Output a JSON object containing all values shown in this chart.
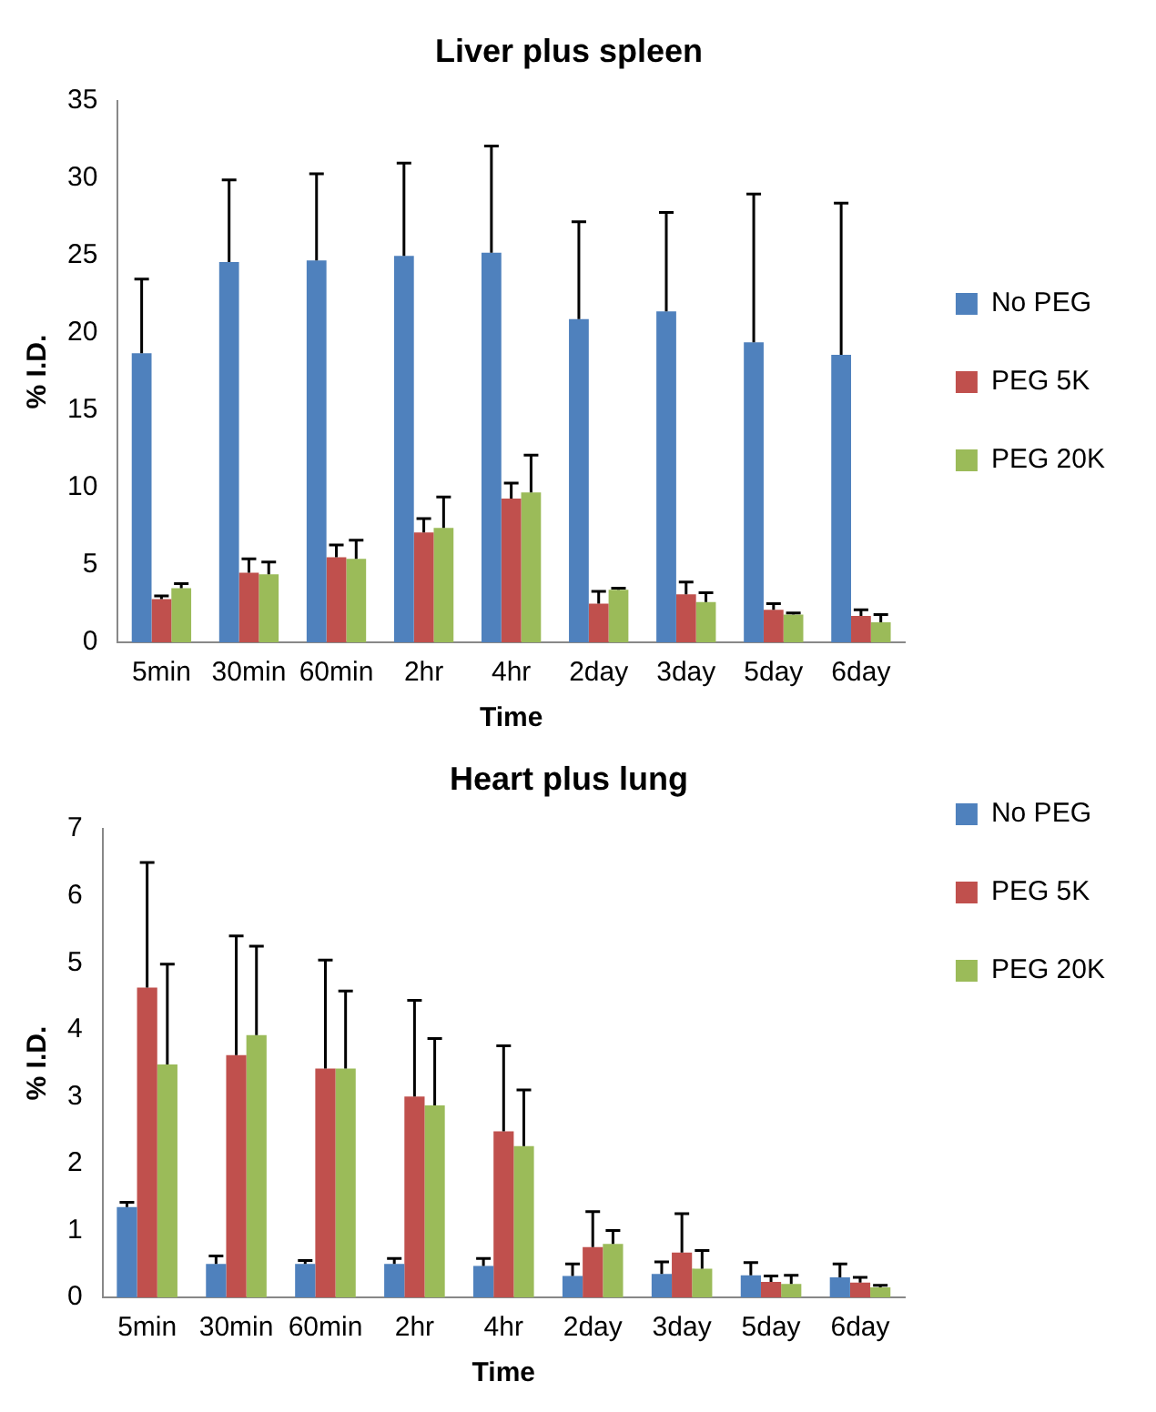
{
  "chart_data": [
    {
      "type": "bar",
      "title": "Liver plus spleen",
      "xlabel": "Time",
      "ylabel": "% I.D.",
      "categories": [
        "5min",
        "30min",
        "60min",
        "2hr",
        "4hr",
        "2day",
        "3day",
        "5day",
        "6day"
      ],
      "ylim": [
        0,
        35
      ],
      "yticks": [
        0,
        5,
        10,
        15,
        20,
        25,
        30,
        35
      ],
      "grid": false,
      "legend": "right",
      "series": [
        {
          "name": "No PEG",
          "color": "#4f81bd",
          "values": [
            18.7,
            24.6,
            24.7,
            25.0,
            25.2,
            20.9,
            21.4,
            19.4,
            18.6
          ],
          "errors": [
            [
              18.7,
              23.5
            ],
            [
              24.6,
              29.9
            ],
            [
              24.7,
              30.3
            ],
            [
              25.0,
              31.0
            ],
            [
              25.2,
              32.1
            ],
            [
              20.9,
              27.2
            ],
            [
              21.4,
              27.8
            ],
            [
              19.4,
              29.0
            ],
            [
              18.6,
              28.4
            ]
          ]
        },
        {
          "name": "PEG 5K",
          "color": "#c0504d",
          "values": [
            2.8,
            4.5,
            5.5,
            7.1,
            9.3,
            2.5,
            3.1,
            2.1,
            1.7
          ],
          "errors": [
            [
              2.8,
              3.0
            ],
            [
              4.5,
              5.4
            ],
            [
              5.5,
              6.3
            ],
            [
              7.1,
              8.0
            ],
            [
              9.3,
              10.3
            ],
            [
              2.5,
              3.3
            ],
            [
              3.1,
              3.9
            ],
            [
              2.1,
              2.5
            ],
            [
              1.7,
              2.1
            ]
          ]
        },
        {
          "name": "PEG 20K",
          "color": "#9bbb59",
          "values": [
            3.5,
            4.4,
            5.4,
            7.4,
            9.7,
            3.4,
            2.6,
            1.8,
            1.3
          ],
          "errors": [
            [
              3.5,
              3.8
            ],
            [
              4.4,
              5.2
            ],
            [
              5.4,
              6.6
            ],
            [
              7.4,
              9.4
            ],
            [
              9.7,
              12.1
            ],
            [
              3.4,
              3.5
            ],
            [
              2.6,
              3.2
            ],
            [
              1.8,
              1.9
            ],
            [
              1.3,
              1.8
            ]
          ]
        }
      ]
    },
    {
      "type": "bar",
      "title": "Heart plus lung",
      "xlabel": "Time",
      "ylabel": "% I.D.",
      "categories": [
        "5min",
        "30min",
        "60min",
        "2hr",
        "4hr",
        "2day",
        "3day",
        "5day",
        "6day"
      ],
      "ylim": [
        0,
        7
      ],
      "yticks": [
        0,
        1,
        2,
        3,
        4,
        5,
        6,
        7
      ],
      "grid": false,
      "legend": "top right",
      "series": [
        {
          "name": "No PEG",
          "color": "#4f81bd",
          "values": [
            1.35,
            0.5,
            0.5,
            0.5,
            0.47,
            0.32,
            0.35,
            0.33,
            0.3
          ],
          "errors": [
            [
              1.35,
              1.42
            ],
            [
              0.5,
              0.62
            ],
            [
              0.5,
              0.55
            ],
            [
              0.5,
              0.58
            ],
            [
              0.47,
              0.58
            ],
            [
              0.32,
              0.5
            ],
            [
              0.35,
              0.53
            ],
            [
              0.33,
              0.52
            ],
            [
              0.3,
              0.5
            ]
          ]
        },
        {
          "name": "PEG 5K",
          "color": "#c0504d",
          "values": [
            4.63,
            3.62,
            3.42,
            3.0,
            2.48,
            0.75,
            0.67,
            0.23,
            0.22
          ],
          "errors": [
            [
              4.63,
              6.5
            ],
            [
              3.62,
              5.4
            ],
            [
              3.42,
              5.04
            ],
            [
              3.0,
              4.44
            ],
            [
              2.48,
              3.76
            ],
            [
              0.75,
              1.28
            ],
            [
              0.67,
              1.25
            ],
            [
              0.23,
              0.32
            ],
            [
              0.22,
              0.3
            ]
          ]
        },
        {
          "name": "PEG 20K",
          "color": "#9bbb59",
          "values": [
            3.48,
            3.92,
            3.42,
            2.87,
            2.26,
            0.8,
            0.43,
            0.2,
            0.15
          ],
          "errors": [
            [
              3.48,
              4.98
            ],
            [
              3.92,
              5.25
            ],
            [
              3.42,
              4.58
            ],
            [
              2.87,
              3.87
            ],
            [
              2.26,
              3.1
            ],
            [
              0.8,
              1.0
            ],
            [
              0.43,
              0.7
            ],
            [
              0.2,
              0.33
            ],
            [
              0.15,
              0.18
            ]
          ]
        }
      ]
    }
  ]
}
